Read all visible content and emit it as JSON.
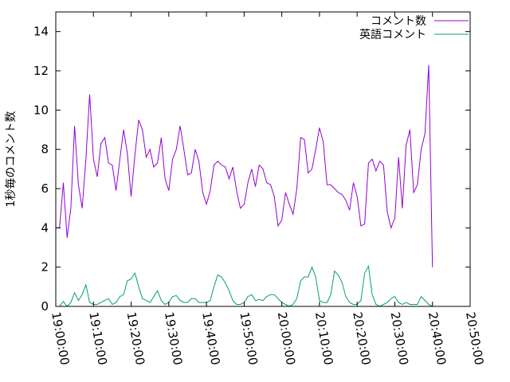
{
  "chart_data": {
    "type": "line",
    "ylabel": "1秒毎のコメント数",
    "xlabel": "",
    "grid": false,
    "legend_position": "top-right",
    "ylim": [
      0,
      15
    ],
    "xlim": [
      "19:00:00",
      "20:50:00"
    ],
    "yticks": [
      "0",
      "2",
      "4",
      "6",
      "8",
      "10",
      "12",
      "14"
    ],
    "xticks": [
      "19:00:00",
      "19:10:00",
      "19:20:00",
      "19:30:00",
      "19:40:00",
      "19:50:00",
      "20:00:00",
      "20:10:00",
      "20:20:00",
      "20:30:00",
      "20:40:00",
      "20:50:00"
    ],
    "series": [
      {
        "name": "コメント数",
        "color": "#9400d3",
        "points": [
          [
            "19:00:00",
            4.0
          ],
          [
            "19:01:00",
            4.0
          ],
          [
            "19:02:00",
            6.3
          ],
          [
            "19:03:00",
            3.5
          ],
          [
            "19:04:00",
            5.0
          ],
          [
            "19:05:00",
            9.2
          ],
          [
            "19:06:00",
            6.2
          ],
          [
            "19:07:00",
            5.0
          ],
          [
            "19:08:00",
            7.5
          ],
          [
            "19:09:00",
            10.8
          ],
          [
            "19:10:00",
            7.5
          ],
          [
            "19:11:00",
            6.6
          ],
          [
            "19:12:00",
            8.3
          ],
          [
            "19:13:00",
            8.6
          ],
          [
            "19:14:00",
            7.3
          ],
          [
            "19:15:00",
            7.2
          ],
          [
            "19:16:00",
            5.9
          ],
          [
            "19:17:00",
            7.5
          ],
          [
            "19:18:00",
            9.0
          ],
          [
            "19:19:00",
            7.8
          ],
          [
            "19:20:00",
            5.6
          ],
          [
            "19:21:00",
            7.7
          ],
          [
            "19:22:00",
            9.5
          ],
          [
            "19:23:00",
            9.0
          ],
          [
            "19:24:00",
            7.6
          ],
          [
            "19:25:00",
            8.0
          ],
          [
            "19:26:00",
            7.1
          ],
          [
            "19:27:00",
            7.3
          ],
          [
            "19:28:00",
            8.6
          ],
          [
            "19:29:00",
            6.5
          ],
          [
            "19:30:00",
            5.9
          ],
          [
            "19:31:00",
            7.5
          ],
          [
            "19:32:00",
            8.0
          ],
          [
            "19:33:00",
            9.2
          ],
          [
            "19:34:00",
            8.0
          ],
          [
            "19:35:00",
            6.7
          ],
          [
            "19:36:00",
            6.8
          ],
          [
            "19:37:00",
            8.0
          ],
          [
            "19:38:00",
            7.4
          ],
          [
            "19:39:00",
            5.8
          ],
          [
            "19:40:00",
            5.2
          ],
          [
            "19:41:00",
            5.9
          ],
          [
            "19:42:00",
            7.2
          ],
          [
            "19:43:00",
            7.4
          ],
          [
            "19:44:00",
            7.2
          ],
          [
            "19:45:00",
            7.1
          ],
          [
            "19:46:00",
            6.5
          ],
          [
            "19:47:00",
            7.1
          ],
          [
            "19:48:00",
            5.9
          ],
          [
            "19:49:00",
            5.0
          ],
          [
            "19:50:00",
            5.2
          ],
          [
            "19:51:00",
            6.3
          ],
          [
            "19:52:00",
            7.0
          ],
          [
            "19:53:00",
            6.1
          ],
          [
            "19:54:00",
            7.2
          ],
          [
            "19:55:00",
            7.0
          ],
          [
            "19:56:00",
            6.3
          ],
          [
            "19:57:00",
            6.2
          ],
          [
            "19:58:00",
            5.6
          ],
          [
            "19:59:00",
            4.1
          ],
          [
            "20:00:00",
            4.4
          ],
          [
            "20:01:00",
            5.8
          ],
          [
            "20:02:00",
            5.2
          ],
          [
            "20:03:00",
            4.7
          ],
          [
            "20:04:00",
            6.0
          ],
          [
            "20:05:00",
            8.6
          ],
          [
            "20:06:00",
            8.5
          ],
          [
            "20:07:00",
            6.8
          ],
          [
            "20:08:00",
            7.0
          ],
          [
            "20:09:00",
            8.0
          ],
          [
            "20:10:00",
            9.1
          ],
          [
            "20:11:00",
            8.4
          ],
          [
            "20:12:00",
            6.2
          ],
          [
            "20:13:00",
            6.2
          ],
          [
            "20:14:00",
            6.0
          ],
          [
            "20:15:00",
            5.8
          ],
          [
            "20:16:00",
            5.7
          ],
          [
            "20:17:00",
            5.4
          ],
          [
            "20:18:00",
            4.9
          ],
          [
            "20:19:00",
            6.3
          ],
          [
            "20:20:00",
            5.6
          ],
          [
            "20:21:00",
            4.1
          ],
          [
            "20:22:00",
            4.2
          ],
          [
            "20:23:00",
            7.3
          ],
          [
            "20:24:00",
            7.5
          ],
          [
            "20:25:00",
            6.9
          ],
          [
            "20:26:00",
            7.4
          ],
          [
            "20:27:00",
            7.2
          ],
          [
            "20:28:00",
            4.8
          ],
          [
            "20:29:00",
            4.0
          ],
          [
            "20:30:00",
            4.5
          ],
          [
            "20:31:00",
            7.6
          ],
          [
            "20:32:00",
            5.0
          ],
          [
            "20:33:00",
            8.2
          ],
          [
            "20:34:00",
            9.0
          ],
          [
            "20:35:00",
            5.8
          ],
          [
            "20:36:00",
            6.2
          ],
          [
            "20:37:00",
            8.0
          ],
          [
            "20:38:00",
            8.8
          ],
          [
            "20:39:00",
            12.3
          ],
          [
            "20:40:00",
            2.0
          ]
        ]
      },
      {
        "name": "英語コメント",
        "color": "#009e73",
        "points": [
          [
            "19:00:00",
            0.0
          ],
          [
            "19:01:00",
            0.0
          ],
          [
            "19:02:00",
            0.25
          ],
          [
            "19:03:00",
            0.0
          ],
          [
            "19:04:00",
            0.2
          ],
          [
            "19:05:00",
            0.7
          ],
          [
            "19:06:00",
            0.3
          ],
          [
            "19:07:00",
            0.6
          ],
          [
            "19:08:00",
            1.1
          ],
          [
            "19:09:00",
            0.2
          ],
          [
            "19:10:00",
            0.1
          ],
          [
            "19:11:00",
            0.1
          ],
          [
            "19:12:00",
            0.2
          ],
          [
            "19:13:00",
            0.3
          ],
          [
            "19:14:00",
            0.4
          ],
          [
            "19:15:00",
            0.1
          ],
          [
            "19:16:00",
            0.2
          ],
          [
            "19:17:00",
            0.5
          ],
          [
            "19:18:00",
            0.6
          ],
          [
            "19:19:00",
            1.3
          ],
          [
            "19:20:00",
            1.4
          ],
          [
            "19:21:00",
            1.7
          ],
          [
            "19:22:00",
            1.0
          ],
          [
            "19:23:00",
            0.4
          ],
          [
            "19:24:00",
            0.3
          ],
          [
            "19:25:00",
            0.2
          ],
          [
            "19:26:00",
            0.5
          ],
          [
            "19:27:00",
            0.8
          ],
          [
            "19:28:00",
            0.3
          ],
          [
            "19:29:00",
            0.1
          ],
          [
            "19:30:00",
            0.2
          ],
          [
            "19:31:00",
            0.5
          ],
          [
            "19:32:00",
            0.55
          ],
          [
            "19:33:00",
            0.3
          ],
          [
            "19:34:00",
            0.2
          ],
          [
            "19:35:00",
            0.2
          ],
          [
            "19:36:00",
            0.4
          ],
          [
            "19:37:00",
            0.4
          ],
          [
            "19:38:00",
            0.2
          ],
          [
            "19:39:00",
            0.2
          ],
          [
            "19:40:00",
            0.2
          ],
          [
            "19:41:00",
            0.3
          ],
          [
            "19:42:00",
            1.0
          ],
          [
            "19:43:00",
            1.6
          ],
          [
            "19:44:00",
            1.5
          ],
          [
            "19:45:00",
            1.2
          ],
          [
            "19:46:00",
            0.8
          ],
          [
            "19:47:00",
            0.3
          ],
          [
            "19:48:00",
            0.1
          ],
          [
            "19:49:00",
            0.1
          ],
          [
            "19:50:00",
            0.2
          ],
          [
            "19:51:00",
            0.5
          ],
          [
            "19:52:00",
            0.6
          ],
          [
            "19:53:00",
            0.3
          ],
          [
            "19:54:00",
            0.35
          ],
          [
            "19:55:00",
            0.3
          ],
          [
            "19:56:00",
            0.5
          ],
          [
            "19:57:00",
            0.6
          ],
          [
            "19:58:00",
            0.6
          ],
          [
            "19:59:00",
            0.4
          ],
          [
            "20:00:00",
            0.2
          ],
          [
            "20:01:00",
            0.1
          ],
          [
            "20:02:00",
            0.0
          ],
          [
            "20:03:00",
            0.1
          ],
          [
            "20:04:00",
            0.4
          ],
          [
            "20:05:00",
            1.3
          ],
          [
            "20:06:00",
            1.5
          ],
          [
            "20:07:00",
            1.5
          ],
          [
            "20:08:00",
            2.0
          ],
          [
            "20:09:00",
            1.5
          ],
          [
            "20:10:00",
            0.3
          ],
          [
            "20:11:00",
            0.2
          ],
          [
            "20:12:00",
            0.2
          ],
          [
            "20:13:00",
            0.6
          ],
          [
            "20:14:00",
            1.8
          ],
          [
            "20:15:00",
            1.6
          ],
          [
            "20:16:00",
            1.2
          ],
          [
            "20:17:00",
            0.5
          ],
          [
            "20:18:00",
            0.2
          ],
          [
            "20:19:00",
            0.1
          ],
          [
            "20:20:00",
            0.1
          ],
          [
            "20:21:00",
            0.3
          ],
          [
            "20:22:00",
            1.7
          ],
          [
            "20:23:00",
            2.05
          ],
          [
            "20:24:00",
            0.6
          ],
          [
            "20:25:00",
            0.1
          ],
          [
            "20:26:00",
            0.0
          ],
          [
            "20:27:00",
            0.1
          ],
          [
            "20:28:00",
            0.2
          ],
          [
            "20:29:00",
            0.4
          ],
          [
            "20:30:00",
            0.5
          ],
          [
            "20:31:00",
            0.2
          ],
          [
            "20:32:00",
            0.1
          ],
          [
            "20:33:00",
            0.2
          ],
          [
            "20:34:00",
            0.1
          ],
          [
            "20:35:00",
            0.1
          ],
          [
            "20:36:00",
            0.1
          ],
          [
            "20:37:00",
            0.5
          ],
          [
            "20:38:00",
            0.3
          ],
          [
            "20:39:00",
            0.1
          ],
          [
            "20:40:00",
            0.0
          ]
        ]
      }
    ]
  }
}
